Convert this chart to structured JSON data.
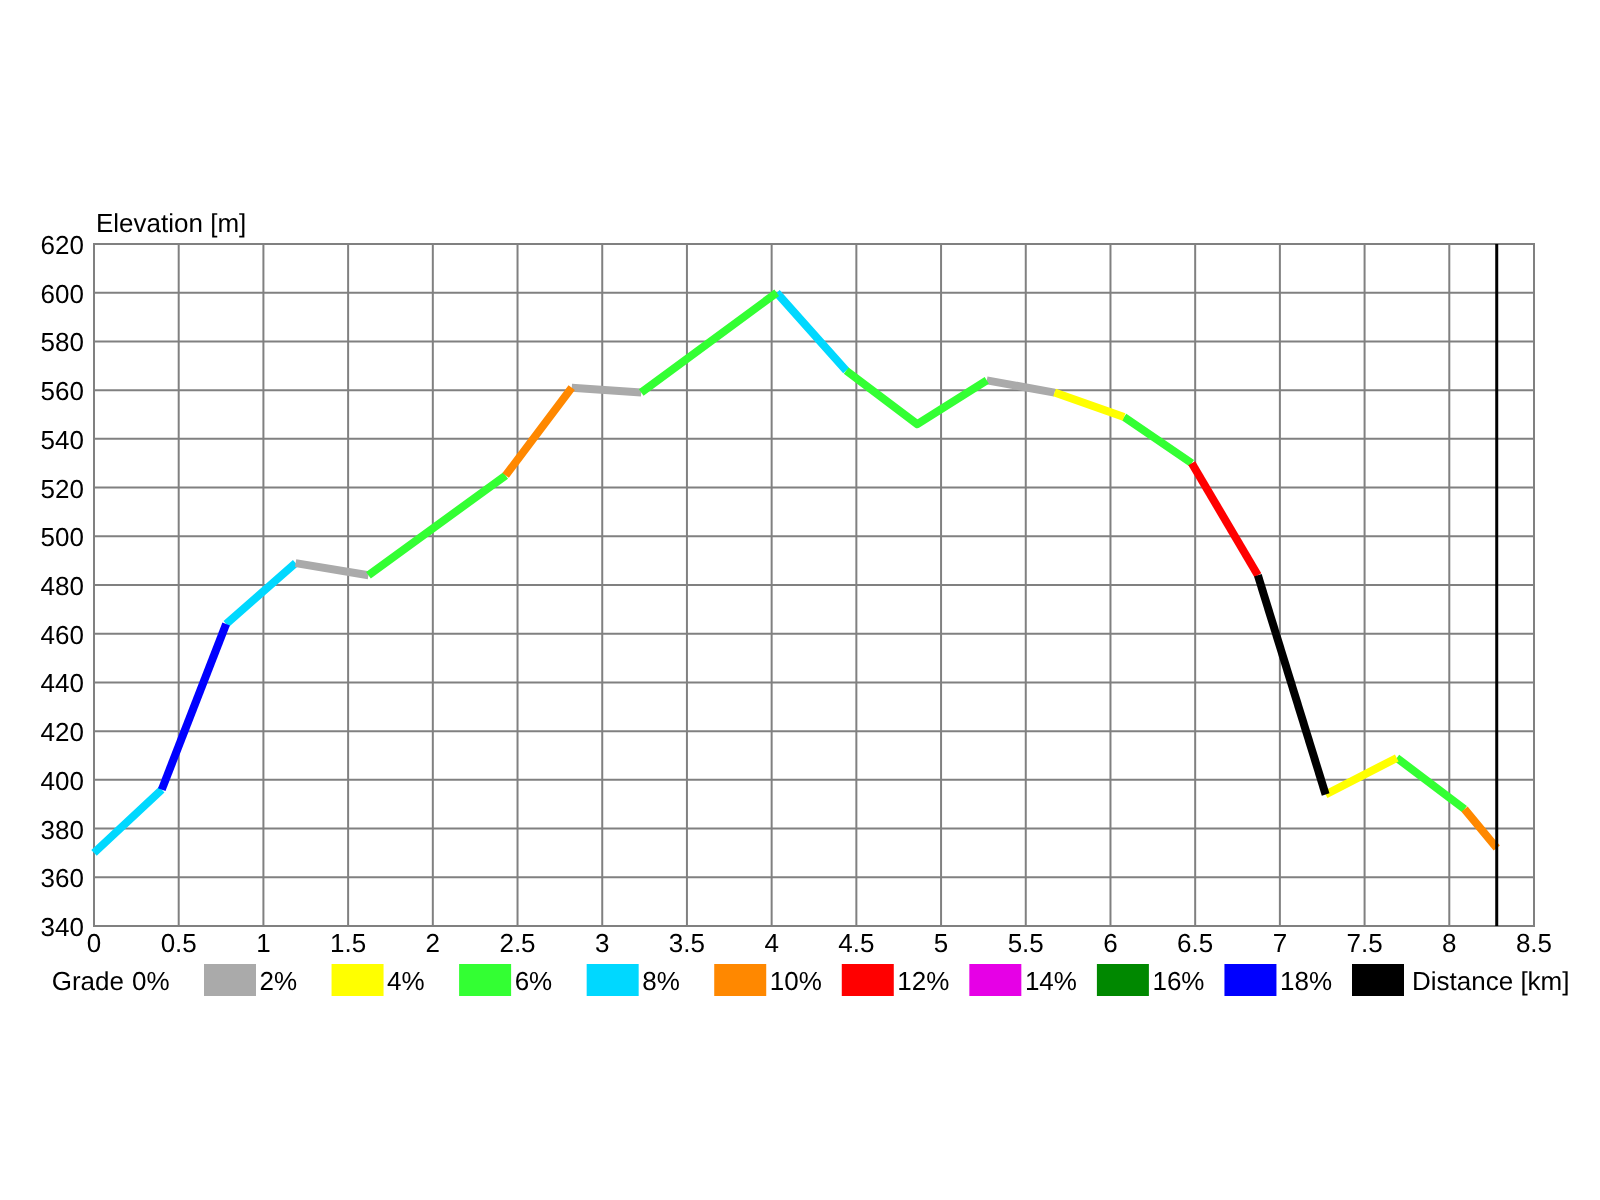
{
  "chart_data": {
    "type": "line",
    "ylabel": "Elevation [m]",
    "xlabel": "Distance [km]",
    "clabel": "Grade",
    "xlim": [
      0,
      8.5
    ],
    "xticks": [
      0,
      0.5,
      1,
      1.5,
      2,
      2.5,
      3,
      3.5,
      4,
      4.5,
      5,
      5.5,
      6,
      6.5,
      7,
      7.5,
      8,
      8.5
    ],
    "ylim": [
      340,
      620
    ],
    "yticks": [
      340,
      360,
      380,
      400,
      420,
      440,
      460,
      480,
      500,
      520,
      540,
      560,
      580,
      600,
      620
    ],
    "grid": true,
    "line_style": "solid",
    "annotations": [
      "0%",
      "2%",
      "4%",
      "6%",
      "8%",
      "10%",
      "12%",
      "14%",
      "16%",
      "18%"
    ],
    "colors": [
      "#aaaaaa",
      "#ffff00",
      "#33ff33",
      "#00d8ff",
      "#ff8800",
      "#ff0000",
      "#e600e6",
      "#008800",
      "#0000ff",
      "#000000"
    ],
    "ref_lines": [
      {
        "axis": "x",
        "value": 8.28,
        "color": "#000000"
      }
    ],
    "series": [
      {
        "color": "#00d8ff",
        "x": [
          0,
          0.4,
          0.6,
          0.78,
          1.19,
          2,
          4.03,
          4.44
        ],
        "values": [
          370,
          396,
          null,
          464,
          489,
          null,
          600,
          568
        ]
      },
      {
        "color": "#0000ff",
        "x": [
          0.4,
          0.78
        ],
        "values": [
          396,
          464
        ]
      },
      {
        "color": "#aaaaaa",
        "x": [
          1.19,
          1.62,
          2,
          2.82,
          3.23,
          4,
          5.27,
          5.67
        ],
        "values": [
          489,
          484,
          null,
          561,
          559,
          null,
          564,
          559
        ]
      },
      {
        "color": "#33ff33",
        "x": [
          1.62,
          2.43,
          2.6,
          3.23,
          4.03,
          4.2,
          4.44,
          4.86,
          5.27,
          5.5,
          6.08,
          6.48,
          7,
          7.69,
          8.09
        ],
        "values": [
          484,
          525,
          null,
          559,
          600,
          null,
          568,
          546,
          564,
          null,
          549,
          530,
          null,
          409,
          388
        ]
      },
      {
        "color": "#ff8800",
        "x": [
          2.43,
          2.82,
          5,
          8.09,
          8.28
        ],
        "values": [
          525,
          561,
          null,
          388,
          372
        ]
      },
      {
        "color": "#ffff00",
        "x": [
          5.67,
          6.08,
          7,
          7.27,
          7.69
        ],
        "values": [
          559,
          549,
          null,
          394,
          409
        ]
      },
      {
        "color": "#ff0000",
        "x": [
          6.48,
          6.87
        ],
        "values": [
          530,
          484
        ]
      },
      {
        "color": "#000000",
        "x": [
          6.87,
          7.27
        ],
        "values": [
          484,
          394
        ]
      }
    ]
  }
}
